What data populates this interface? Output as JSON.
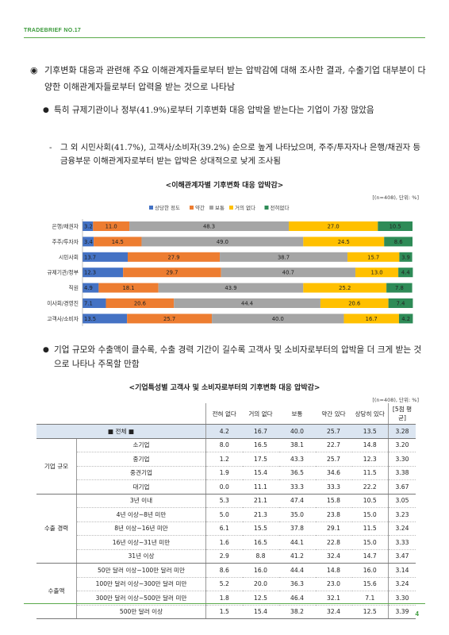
{
  "header": {
    "label": "TRADEBRIEF NO.17"
  },
  "page_number": "4",
  "paragraphs": {
    "p1": {
      "marker": "◉",
      "text": "기후변화 대응과 관련해 주요 이해관계자들로부터 받는 압박감에 대해 조사한 결과, 수출기업 대부분이 다양한 이해관계자들로부터 압력을 받는 것으로 나타남"
    },
    "p2": {
      "marker": "●",
      "text": "특히 규제기관이나 정부(41.9%)로부터 기후변화 대응 압박을 받는다는 기업이 가장 많았음"
    },
    "p3": {
      "marker": "-",
      "text": "그 외 시민사회(41.7%), 고객사/소비자(39.2%) 순으로 높게 나타났으며, 주주/투자자나 은행/채권자 등 금융부문 이해관계자로부터 받는 압박은 상대적으로 낮게 조사됨"
    },
    "p4": {
      "marker": "●",
      "text": "기업 규모와 수출액이 클수록, 수출 경력 기간이 길수록 고객사 및 소비자로부터의 압박을 더 크게 받는 것으로 나타나 주목할 만함"
    }
  },
  "chart1_title": "<이해관계자별 기후변화 대응 압박감>",
  "chart1_note": "[(n=408), 단위: %]",
  "chart2_title": "<기업특성별 고객사 및 소비자로부터의 기후변화 대응 압박감>",
  "chart2_note": "[(n=408), 단위: %]",
  "chart_data": {
    "type": "bar",
    "orientation": "horizontal-stacked-100",
    "legend_position": "top",
    "categories": [
      "은행/채권자",
      "주주/투자자",
      "시민사회",
      "규제기관/정부",
      "직원",
      "이사회/경영진",
      "고객사/소비자"
    ],
    "series": [
      {
        "name": "상당한 정도",
        "color": "#4472c4",
        "values": [
          3.2,
          3.4,
          13.7,
          12.3,
          4.9,
          7.1,
          13.5
        ]
      },
      {
        "name": "약간",
        "color": "#ed7d31",
        "values": [
          11.0,
          14.5,
          27.9,
          29.7,
          18.1,
          20.6,
          25.7
        ]
      },
      {
        "name": "보통",
        "color": "#a5a5a5",
        "values": [
          48.3,
          49.0,
          38.7,
          40.7,
          43.9,
          44.4,
          40.0
        ]
      },
      {
        "name": "거의 없다",
        "color": "#ffc000",
        "values": [
          27.0,
          24.5,
          15.7,
          13.0,
          25.2,
          20.6,
          16.7
        ]
      },
      {
        "name": "전혀없다",
        "color": "#2e8b57",
        "values": [
          10.5,
          8.6,
          3.9,
          4.4,
          7.8,
          7.4,
          4.2
        ]
      }
    ]
  },
  "table": {
    "columns": [
      "전혀 없다",
      "거의 없다",
      "보통",
      "약간 있다",
      "상당히 있다",
      "[5점 평균]"
    ],
    "total": {
      "label": "■ 전체 ■",
      "values": [
        "4.2",
        "16.7",
        "40.0",
        "25.7",
        "13.5",
        "3.28"
      ]
    },
    "groups": [
      {
        "name": "기업 규모",
        "rows": [
          {
            "label": "소기업",
            "values": [
              "8.0",
              "16.5",
              "38.1",
              "22.7",
              "14.8",
              "3.20"
            ]
          },
          {
            "label": "중기업",
            "values": [
              "1.2",
              "17.5",
              "43.3",
              "25.7",
              "12.3",
              "3.30"
            ]
          },
          {
            "label": "중견기업",
            "values": [
              "1.9",
              "15.4",
              "36.5",
              "34.6",
              "11.5",
              "3.38"
            ]
          },
          {
            "label": "대기업",
            "values": [
              "0.0",
              "11.1",
              "33.3",
              "33.3",
              "22.2",
              "3.67"
            ]
          }
        ]
      },
      {
        "name": "수출 경력",
        "rows": [
          {
            "label": "3년 이내",
            "values": [
              "5.3",
              "21.1",
              "47.4",
              "15.8",
              "10.5",
              "3.05"
            ]
          },
          {
            "label": "4년 이상~8년 미만",
            "values": [
              "5.0",
              "21.3",
              "35.0",
              "23.8",
              "15.0",
              "3.23"
            ]
          },
          {
            "label": "8년 이상~16년 미만",
            "values": [
              "6.1",
              "15.5",
              "37.8",
              "29.1",
              "11.5",
              "3.24"
            ]
          },
          {
            "label": "16년 이상~31년 미만",
            "values": [
              "1.6",
              "16.5",
              "44.1",
              "22.8",
              "15.0",
              "3.33"
            ]
          },
          {
            "label": "31년 이상",
            "values": [
              "2.9",
              "8.8",
              "41.2",
              "32.4",
              "14.7",
              "3.47"
            ]
          }
        ]
      },
      {
        "name": "수출액",
        "rows": [
          {
            "label": "50만 달러 이상~100만 달러 미만",
            "values": [
              "8.6",
              "16.0",
              "44.4",
              "14.8",
              "16.0",
              "3.14"
            ]
          },
          {
            "label": "100만 달러 이상~300만 달러 미만",
            "values": [
              "5.2",
              "20.0",
              "36.3",
              "23.0",
              "15.6",
              "3.24"
            ]
          },
          {
            "label": "300만 달러 이상~500만 달러 미만",
            "values": [
              "1.8",
              "12.5",
              "46.4",
              "32.1",
              "7.1",
              "3.30"
            ]
          },
          {
            "label": "500만 달러 이상",
            "values": [
              "1.5",
              "15.4",
              "38.2",
              "32.4",
              "12.5",
              "3.39"
            ]
          }
        ]
      }
    ]
  }
}
